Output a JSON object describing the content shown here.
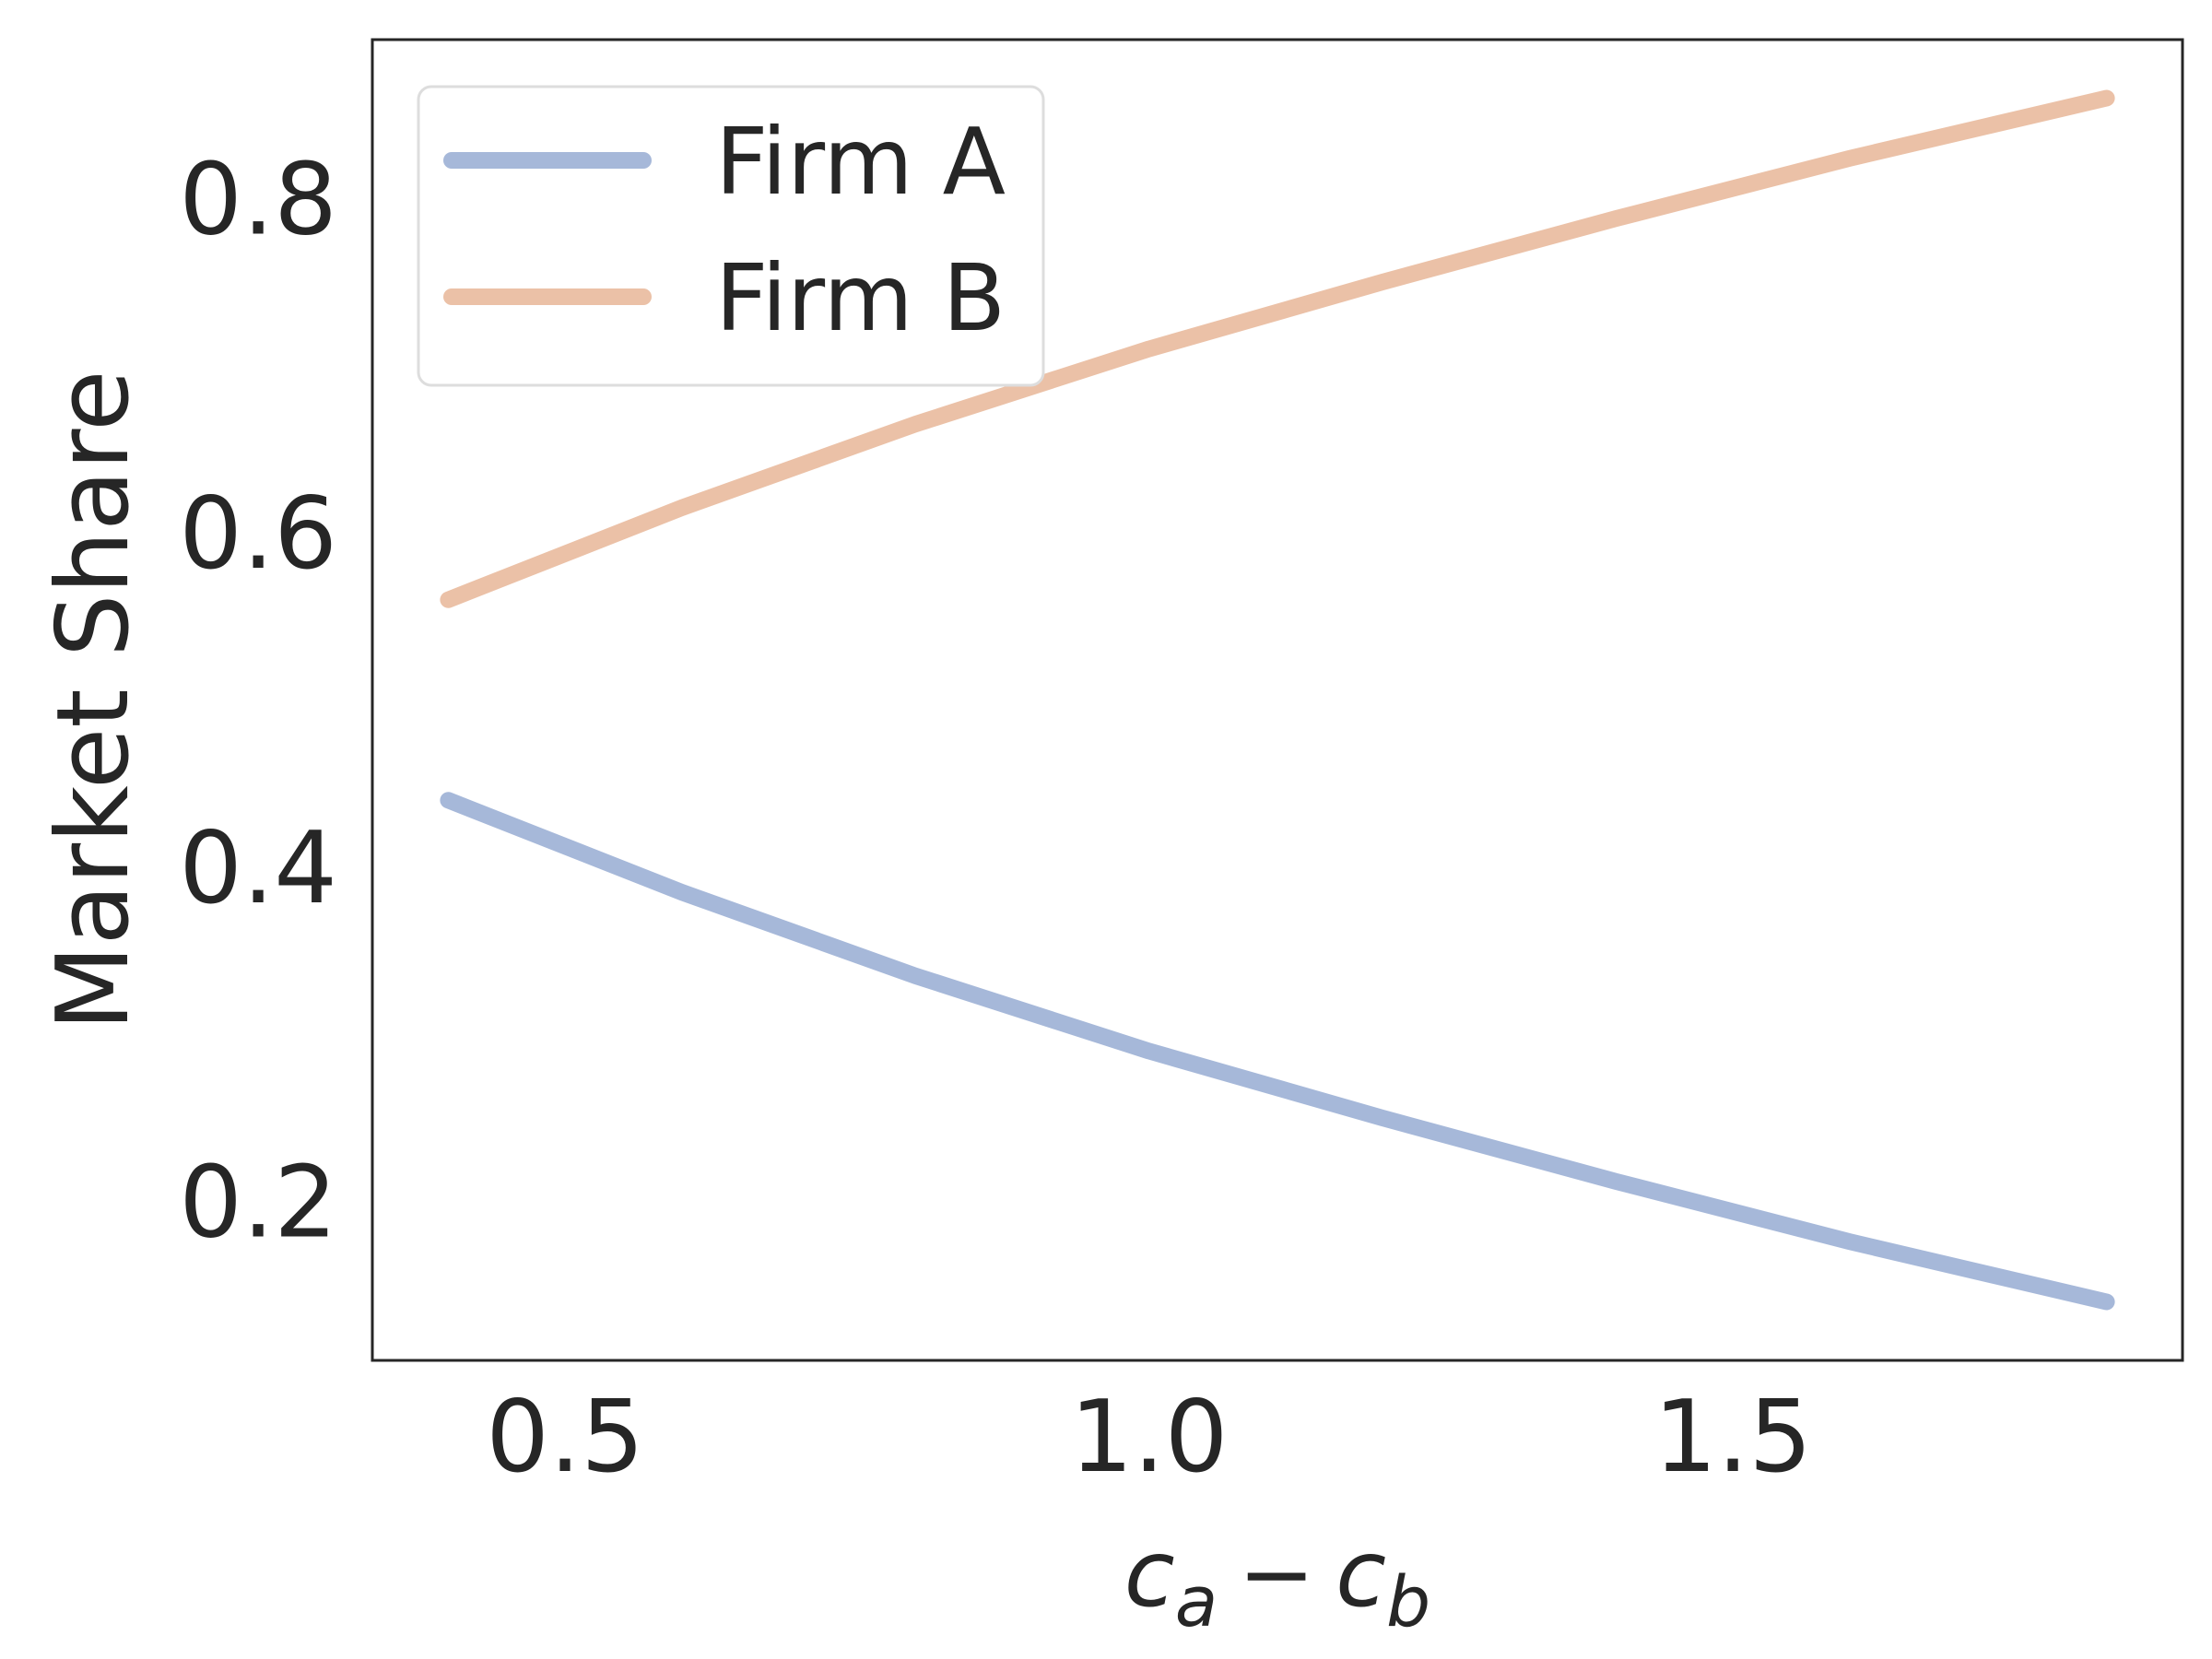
{
  "chart_data": {
    "type": "line",
    "x": [
      0.4,
      0.6,
      0.8,
      1.0,
      1.2,
      1.4,
      1.6,
      1.82
    ],
    "series": [
      {
        "name": "Firm A",
        "color": "#a6b8d9",
        "values": [
          0.44,
          0.385,
          0.335,
          0.29,
          0.25,
          0.212,
          0.176,
          0.14
        ]
      },
      {
        "name": "Firm B",
        "color": "#ebc1a7",
        "values": [
          0.56,
          0.615,
          0.665,
          0.71,
          0.75,
          0.788,
          0.824,
          0.86
        ]
      }
    ],
    "xlabel": "c_a − c_b",
    "xlabel_parts": {
      "c1": "c",
      "sub1": "a",
      "op": "−",
      "c2": "c",
      "sub2": "b"
    },
    "ylabel": "Market Share",
    "xlim": [
      0.335,
      1.885
    ],
    "ylim": [
      0.105,
      0.895
    ],
    "xticks": [
      0.5,
      1.0,
      1.5
    ],
    "xtick_labels": [
      "0.5",
      "1.0",
      "1.5"
    ],
    "yticks": [
      0.2,
      0.4,
      0.6,
      0.8
    ],
    "ytick_labels": [
      "0.2",
      "0.4",
      "0.6",
      "0.8"
    ],
    "grid": false,
    "legend": "top-left"
  }
}
